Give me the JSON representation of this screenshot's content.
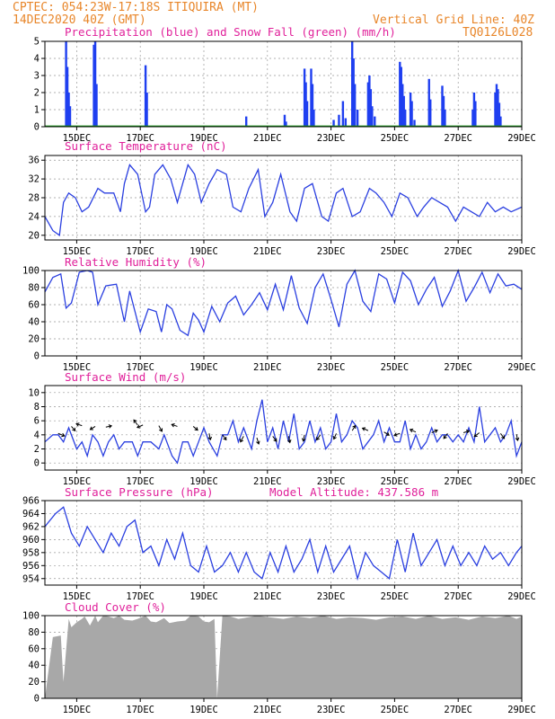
{
  "header": {
    "line1_left": "CPTEC:   054:23W-17:18S   ITIQUIRA (MT)",
    "line2_left": "14DEC2020 40Z (GMT)",
    "line2_right": "Vertical Grid Line: 40Z",
    "line3_right": "TQ0126L028"
  },
  "colors": {
    "header": "#e8862a",
    "title": "#e0209a",
    "precip": "#1f3ff0",
    "snow": "#1a9a1a",
    "line": "#2a3fe0",
    "cloud": "#a8a8a8",
    "wind_arrow": "#000000"
  },
  "x_dates": [
    "15DEC",
    "17DEC",
    "19DEC",
    "21DEC",
    "23DEC",
    "25DEC",
    "27DEC",
    "29DEC"
  ],
  "chart_data": [
    {
      "type": "bar",
      "title": "Precipitation (blue) and Snow Fall (green) (mm/h)",
      "ylim": [
        0,
        5
      ],
      "yticks": [
        0,
        1,
        2,
        3,
        4,
        5
      ],
      "xlim_hours": [
        0,
        360
      ],
      "precip_events": [
        [
          16,
          5.0
        ],
        [
          17,
          3.5
        ],
        [
          18,
          2.0
        ],
        [
          19,
          1.2
        ],
        [
          37,
          4.8
        ],
        [
          38,
          5.0
        ],
        [
          39,
          2.5
        ],
        [
          76,
          3.6
        ],
        [
          77,
          2.0
        ],
        [
          152,
          0.6
        ],
        [
          181,
          0.7
        ],
        [
          182,
          0.3
        ],
        [
          196,
          3.4
        ],
        [
          197,
          2.6
        ],
        [
          198,
          1.5
        ],
        [
          201,
          3.4
        ],
        [
          202,
          2.5
        ],
        [
          203,
          1.0
        ],
        [
          218,
          0.4
        ],
        [
          222,
          0.7
        ],
        [
          225,
          1.5
        ],
        [
          227,
          0.5
        ],
        [
          232,
          5.0
        ],
        [
          233,
          4.0
        ],
        [
          234,
          2.5
        ],
        [
          236,
          1.0
        ],
        [
          244,
          2.6
        ],
        [
          245,
          3.0
        ],
        [
          246,
          2.2
        ],
        [
          247,
          1.2
        ],
        [
          249,
          0.6
        ],
        [
          268,
          3.8
        ],
        [
          269,
          3.5
        ],
        [
          270,
          2.5
        ],
        [
          271,
          1.8
        ],
        [
          272,
          1.0
        ],
        [
          276,
          2.0
        ],
        [
          277,
          1.5
        ],
        [
          279,
          0.4
        ],
        [
          290,
          2.8
        ],
        [
          291,
          1.6
        ],
        [
          300,
          2.4
        ],
        [
          301,
          1.8
        ],
        [
          302,
          1.0
        ],
        [
          323,
          1.0
        ],
        [
          324,
          2.0
        ],
        [
          325,
          1.5
        ],
        [
          340,
          2.0
        ],
        [
          341,
          2.5
        ],
        [
          342,
          2.2
        ],
        [
          343,
          1.4
        ],
        [
          344,
          0.6
        ]
      ],
      "snow": 0
    },
    {
      "type": "line",
      "title": "Surface Temperature (nC)",
      "ylim": [
        19,
        37
      ],
      "yticks": [
        20,
        24,
        28,
        32,
        36
      ],
      "x_hours": [
        0,
        6,
        11,
        14,
        18,
        23,
        28,
        33,
        40,
        45,
        52,
        57,
        60,
        64,
        70,
        76,
        79,
        83,
        89,
        95,
        100,
        104,
        108,
        113,
        118,
        124,
        130,
        137,
        142,
        148,
        154,
        161,
        166,
        172,
        178,
        185,
        190,
        196,
        202,
        209,
        214,
        220,
        225,
        232,
        238,
        245,
        250,
        256,
        262,
        268,
        274,
        281,
        286,
        292,
        298,
        304,
        310,
        316,
        322,
        328,
        334,
        340,
        346,
        352,
        360
      ],
      "values": [
        24,
        21,
        20,
        27,
        29,
        28,
        25,
        26,
        30,
        29,
        29,
        25,
        31,
        35,
        33,
        25,
        26,
        33,
        35,
        32,
        27,
        31,
        35,
        33,
        27,
        31,
        34,
        33,
        26,
        25,
        30,
        34,
        24,
        27,
        33,
        25,
        23,
        30,
        31,
        24,
        23,
        29,
        30,
        24,
        25,
        30,
        29,
        27,
        24,
        29,
        28,
        24,
        26,
        28,
        27,
        26,
        23,
        26,
        25,
        24,
        27,
        25,
        26,
        25,
        26
      ]
    },
    {
      "type": "line",
      "title": "Relative Humidity (%)",
      "ylim": [
        0,
        100
      ],
      "yticks": [
        0,
        20,
        40,
        60,
        80,
        100
      ],
      "x_hours": [
        0,
        6,
        12,
        16,
        20,
        26,
        32,
        36,
        40,
        46,
        54,
        60,
        64,
        72,
        78,
        84,
        88,
        92,
        96,
        102,
        108,
        112,
        116,
        120,
        126,
        132,
        138,
        144,
        150,
        156,
        162,
        168,
        174,
        180,
        186,
        192,
        198,
        204,
        210,
        216,
        222,
        228,
        234,
        240,
        246,
        252,
        258,
        264,
        270,
        276,
        282,
        288,
        294,
        300,
        306,
        312,
        318,
        324,
        330,
        336,
        342,
        348,
        354,
        360
      ],
      "values": [
        75,
        92,
        96,
        56,
        62,
        98,
        100,
        98,
        60,
        82,
        84,
        40,
        76,
        28,
        55,
        52,
        28,
        60,
        55,
        30,
        24,
        50,
        42,
        28,
        58,
        40,
        62,
        70,
        48,
        60,
        74,
        54,
        84,
        54,
        94,
        56,
        38,
        80,
        96,
        66,
        34,
        84,
        100,
        64,
        52,
        96,
        90,
        62,
        98,
        88,
        60,
        78,
        92,
        58,
        76,
        100,
        64,
        80,
        98,
        74,
        96,
        82,
        84,
        78
      ]
    },
    {
      "type": "line",
      "title": "Surface Wind (m/s)",
      "ylim": [
        -1,
        11
      ],
      "yticks": [
        0,
        2,
        4,
        6,
        8,
        10
      ],
      "x_hours": [
        0,
        6,
        10,
        14,
        18,
        24,
        28,
        32,
        36,
        40,
        44,
        48,
        52,
        56,
        60,
        66,
        70,
        74,
        80,
        86,
        90,
        96,
        100,
        104,
        108,
        112,
        116,
        120,
        124,
        130,
        134,
        138,
        142,
        146,
        150,
        156,
        160,
        164,
        168,
        172,
        176,
        180,
        184,
        188,
        192,
        196,
        200,
        204,
        208,
        212,
        216,
        220,
        224,
        228,
        232,
        236,
        240,
        244,
        248,
        252,
        256,
        260,
        264,
        268,
        272,
        276,
        280,
        284,
        288,
        292,
        296,
        300,
        304,
        308,
        312,
        316,
        320,
        324,
        328,
        332,
        336,
        340,
        344,
        348,
        352,
        356,
        360
      ],
      "values": [
        3,
        4,
        4,
        3,
        5,
        2,
        3,
        1,
        4,
        3,
        1,
        3,
        4,
        2,
        3,
        3,
        1,
        3,
        3,
        2,
        4,
        1,
        0,
        3,
        3,
        1,
        3,
        5,
        3,
        1,
        4,
        4,
        6,
        3,
        5,
        2,
        6,
        9,
        3,
        5,
        2,
        6,
        3,
        7,
        2,
        3,
        6,
        3,
        5,
        2,
        3,
        7,
        3,
        4,
        6,
        5,
        2,
        3,
        4,
        6,
        3,
        5,
        3,
        3,
        6,
        2,
        4,
        2,
        3,
        5,
        3,
        4,
        4,
        3,
        4,
        3,
        5,
        3,
        8,
        3,
        4,
        5,
        3,
        4,
        6,
        1,
        3
      ],
      "arrows": [
        [
          10,
          4.2,
          1.0,
          -0.4
        ],
        [
          20,
          5.2,
          0.6,
          -0.7
        ],
        [
          28,
          5.3,
          -0.9,
          0.3
        ],
        [
          38,
          5.2,
          -0.8,
          -0.5
        ],
        [
          46,
          5.1,
          0.9,
          0.2
        ],
        [
          70,
          5.4,
          -0.6,
          0.8
        ],
        [
          74,
          5.4,
          -0.9,
          -0.4
        ],
        [
          86,
          5.3,
          0.5,
          -0.9
        ],
        [
          100,
          5.2,
          -0.9,
          0.3
        ],
        [
          112,
          5.2,
          0.7,
          -0.6
        ],
        [
          124,
          4.2,
          0.2,
          -1.0
        ],
        [
          134,
          4.0,
          0.6,
          -0.8
        ],
        [
          150,
          3.8,
          -0.5,
          -0.9
        ],
        [
          160,
          3.6,
          0.3,
          -1.0
        ],
        [
          172,
          3.8,
          0.6,
          -0.8
        ],
        [
          184,
          3.8,
          0.2,
          -1.0
        ],
        [
          196,
          4.0,
          -0.2,
          -1.0
        ],
        [
          208,
          4.0,
          -0.6,
          -0.8
        ],
        [
          220,
          4.2,
          -0.4,
          -0.9
        ],
        [
          232,
          4.6,
          0.5,
          0.8
        ],
        [
          244,
          4.6,
          -0.9,
          0.4
        ],
        [
          256,
          4.4,
          0.8,
          -0.5
        ],
        [
          268,
          4.2,
          -0.9,
          -0.3
        ],
        [
          280,
          4.4,
          -0.9,
          0.4
        ],
        [
          292,
          4.3,
          0.9,
          0.4
        ],
        [
          304,
          4.2,
          -0.6,
          -0.8
        ],
        [
          316,
          4.3,
          0.9,
          0.3
        ],
        [
          328,
          4.3,
          -0.8,
          -0.6
        ],
        [
          344,
          4.2,
          0.6,
          -0.8
        ],
        [
          356,
          4.1,
          0.2,
          -1.0
        ]
      ]
    },
    {
      "type": "line",
      "title": "Surface Pressure (hPa)",
      "subtitle": "Model Altitude: 437.586 m",
      "ylim": [
        953,
        966
      ],
      "yticks": [
        954,
        956,
        958,
        960,
        962,
        964,
        966
      ],
      "x_hours": [
        0,
        8,
        14,
        20,
        26,
        32,
        38,
        44,
        50,
        56,
        62,
        68,
        74,
        80,
        86,
        92,
        98,
        104,
        110,
        116,
        122,
        128,
        134,
        140,
        146,
        152,
        158,
        164,
        170,
        176,
        182,
        188,
        194,
        200,
        206,
        212,
        218,
        224,
        230,
        236,
        242,
        248,
        254,
        260,
        266,
        272,
        278,
        284,
        290,
        296,
        302,
        308,
        314,
        320,
        326,
        332,
        338,
        344,
        350,
        356,
        360
      ],
      "values": [
        962,
        964,
        965,
        961,
        959,
        962,
        960,
        958,
        961,
        959,
        962,
        963,
        958,
        959,
        956,
        960,
        957,
        961,
        956,
        955,
        959,
        955,
        956,
        958,
        955,
        958,
        955,
        954,
        958,
        955,
        959,
        955,
        957,
        960,
        955,
        959,
        955,
        957,
        959,
        954,
        958,
        956,
        955,
        954,
        960,
        955,
        961,
        956,
        958,
        960,
        956,
        959,
        956,
        958,
        956,
        959,
        957,
        958,
        956,
        958,
        959
      ]
    },
    {
      "type": "area",
      "title": "Cloud Cover (%)",
      "ylim": [
        0,
        100
      ],
      "yticks": [
        0,
        20,
        40,
        60,
        80,
        100
      ],
      "x_hours": [
        0,
        6,
        12,
        14,
        18,
        20,
        24,
        28,
        30,
        34,
        38,
        40,
        44,
        48,
        52,
        56,
        60,
        66,
        70,
        76,
        80,
        84,
        90,
        94,
        100,
        106,
        110,
        116,
        120,
        124,
        128,
        130,
        134,
        140,
        146,
        150,
        160,
        170,
        180,
        190,
        200,
        210,
        220,
        230,
        240,
        250,
        260,
        270,
        280,
        290,
        300,
        310,
        320,
        330,
        340,
        350,
        356,
        360
      ],
      "values": [
        0,
        74,
        76,
        20,
        96,
        86,
        92,
        96,
        99,
        88,
        100,
        92,
        100,
        99,
        97,
        100,
        95,
        94,
        96,
        100,
        93,
        92,
        97,
        91,
        93,
        94,
        100,
        99,
        93,
        92,
        96,
        0,
        100,
        99,
        96,
        97,
        100,
        98,
        96,
        99,
        97,
        100,
        96,
        98,
        97,
        95,
        98,
        99,
        96,
        100,
        96,
        98,
        95,
        99,
        97,
        100,
        96,
        99
      ]
    }
  ]
}
